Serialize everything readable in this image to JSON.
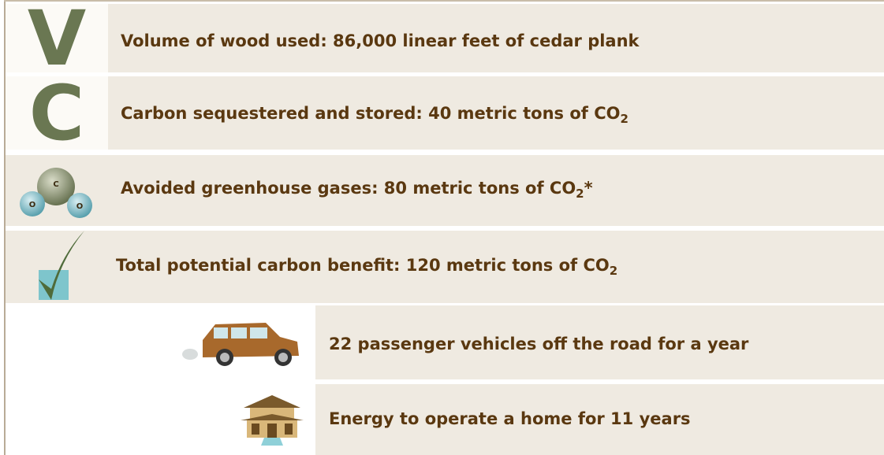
{
  "rows": [
    {
      "icon_letter": "V",
      "text": "Volume of wood used: 86,000 linear feet of cedar plank"
    },
    {
      "icon_letter": "C",
      "text": "Carbon sequestered and stored: 40 metric tons of CO",
      "subscript": "2"
    },
    {
      "icon_atoms": [
        "C",
        "O",
        "O"
      ],
      "text": "Avoided greenhouse gases: 80 metric tons of CO",
      "subscript": "2",
      "suffix": "*"
    },
    {
      "text": "Total potential carbon benefit: 120 metric tons of CO",
      "subscript": "2"
    },
    {
      "text": "22 passenger vehicles off the road for a year"
    },
    {
      "text": "Energy to operate a home for 11 years"
    }
  ]
}
